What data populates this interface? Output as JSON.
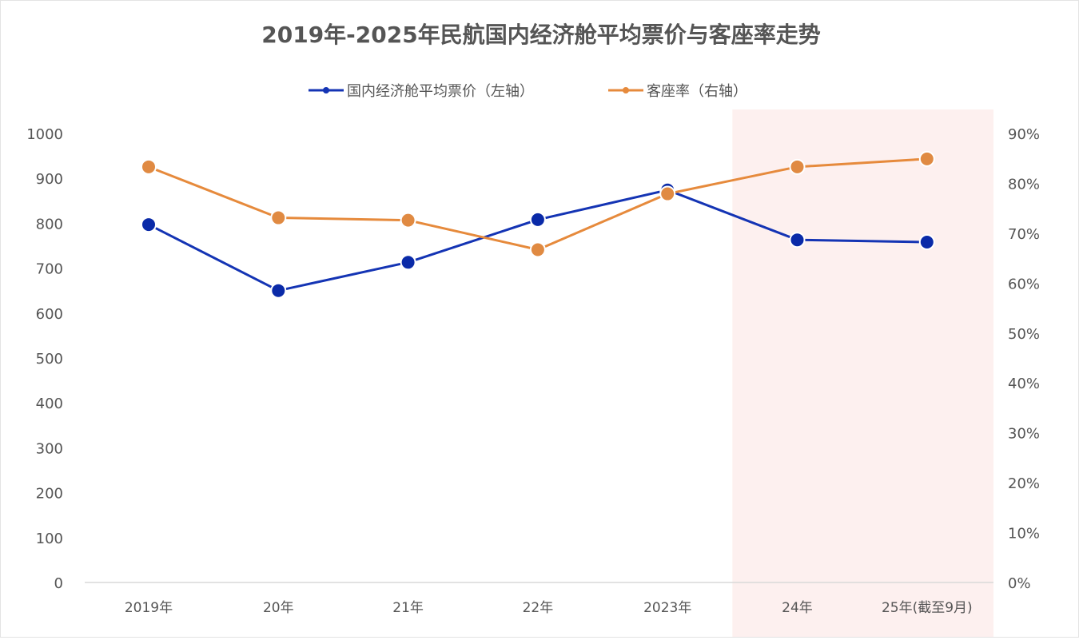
{
  "chart_data": {
    "type": "line",
    "title": "2019年-2025年民航国内经济舱平均票价与客座率走势",
    "categories": [
      "2019年",
      "20年",
      "21年",
      "22年",
      "2023年",
      "24年",
      "25年(截至9月)"
    ],
    "highlight_categories": [
      "24年",
      "25年(截至9月)"
    ],
    "series": [
      {
        "name": "国内经济舱平均票价（左轴）",
        "axis": "left",
        "color": "#1434b4",
        "marker_color": "#0a2aa8",
        "values": [
          797,
          650,
          713,
          808,
          874,
          763,
          758
        ]
      },
      {
        "name": "客座率（右轴）",
        "axis": "right",
        "color": "#e68a3c",
        "marker_color": "#e08a42",
        "values": [
          83.3,
          73.1,
          72.6,
          66.7,
          77.9,
          83.3,
          84.9
        ]
      }
    ],
    "y_left": {
      "min": 0,
      "max": 1000,
      "ticks": [
        "0",
        "100",
        "200",
        "300",
        "400",
        "500",
        "600",
        "700",
        "800",
        "900",
        "1000"
      ]
    },
    "y_right": {
      "min": 0,
      "max": 90,
      "ticks": [
        "0%",
        "10%",
        "20%",
        "30%",
        "40%",
        "50%",
        "60%",
        "70%",
        "80%",
        "90%"
      ]
    },
    "highlight_color": "#fdf0ef",
    "legend_position": "top-center",
    "grid": false
  }
}
